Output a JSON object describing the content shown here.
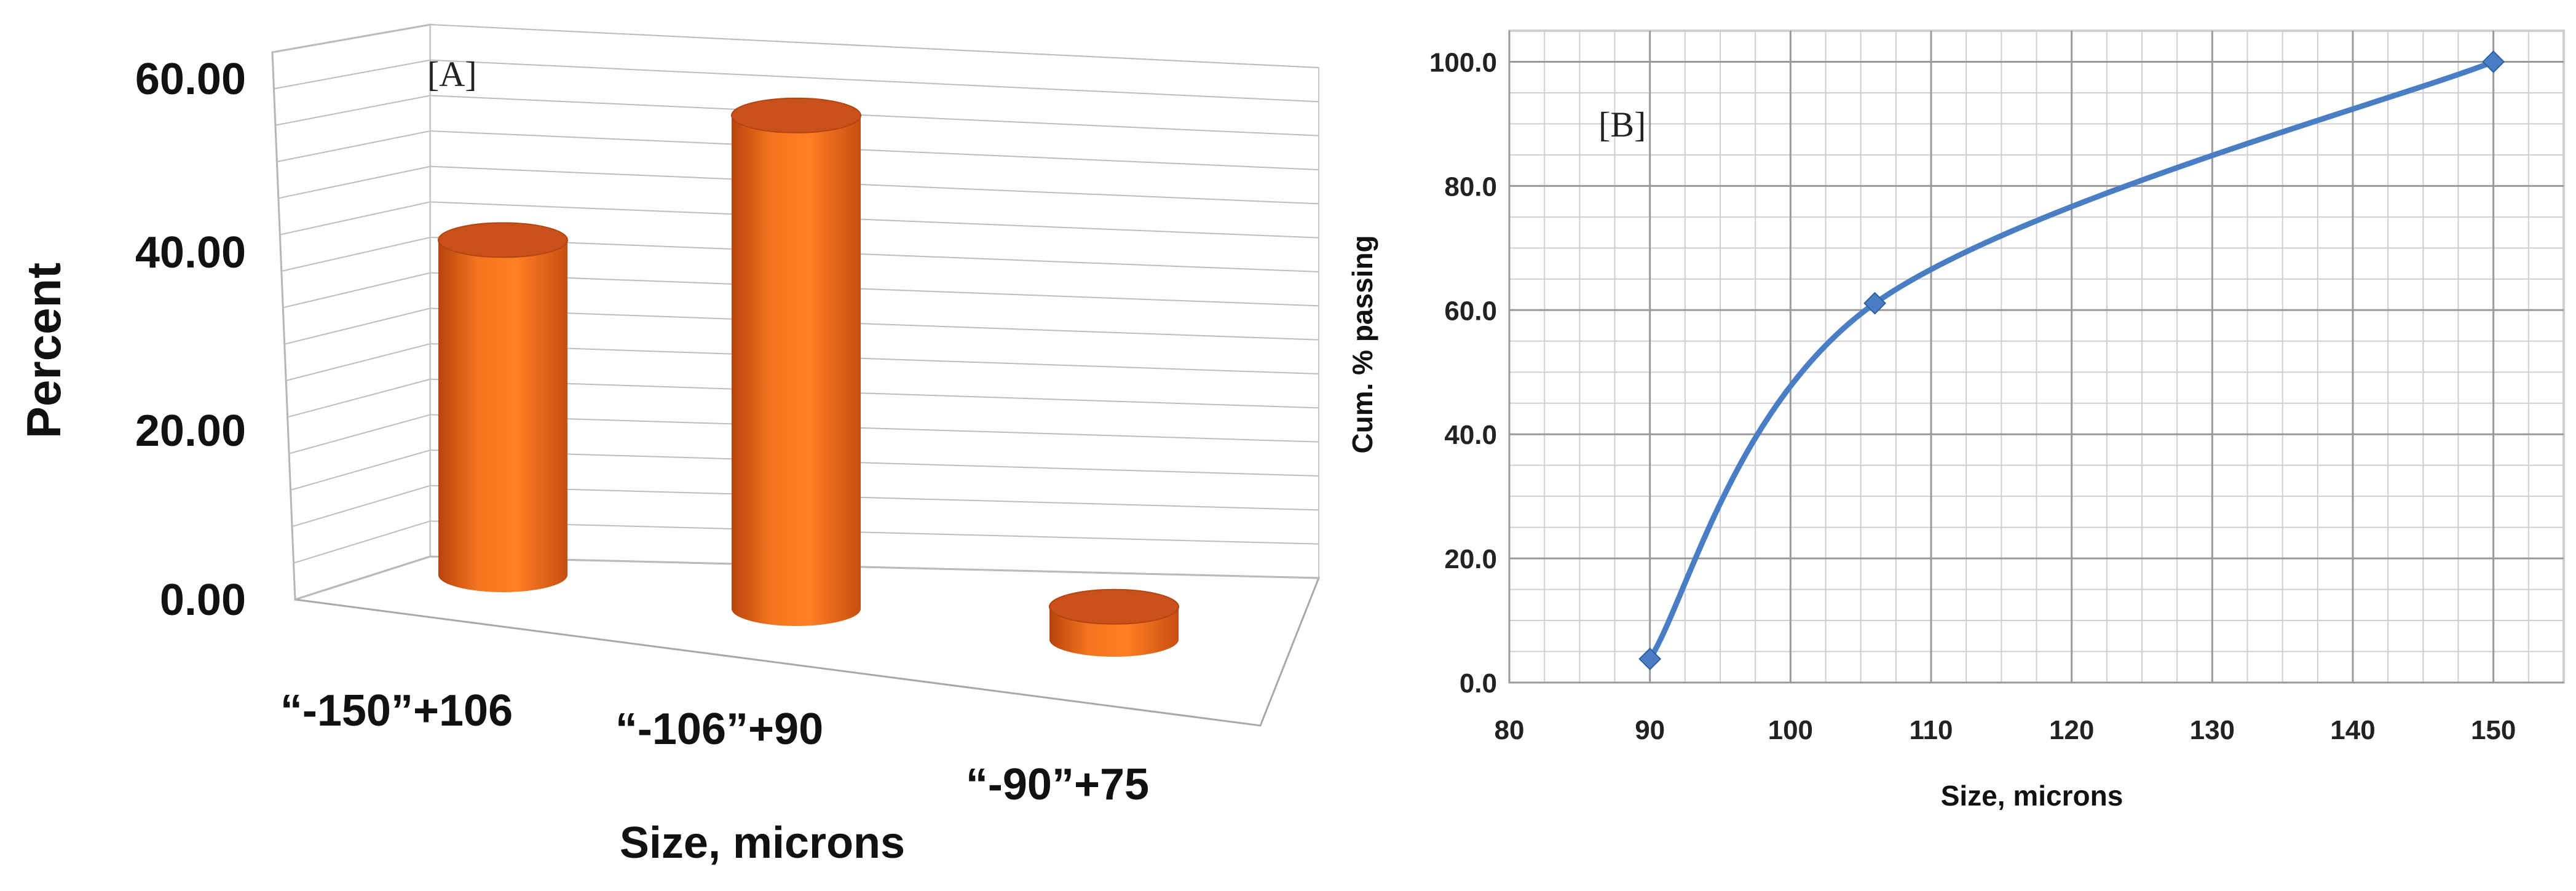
{
  "chart_data": [
    {
      "type": "bar",
      "style": "3d-cylinder",
      "panel_label": "[A]",
      "categories": [
        "“-150”+106",
        "“-106”+90",
        "“-90”+75"
      ],
      "values": [
        38.9,
        57.3,
        3.8
      ],
      "xlabel": "Size, microns",
      "ylabel": "Percent",
      "ylim": [
        0,
        60
      ],
      "yticks": [
        "0.00",
        "20.00",
        "40.00",
        "60.00"
      ],
      "grid": true,
      "color": "#F26A1B"
    },
    {
      "type": "line",
      "panel_label": "[B]",
      "x": [
        90,
        106,
        150
      ],
      "y": [
        3.8,
        61.1,
        100.0
      ],
      "xlabel": "Size, microns",
      "ylabel": "Cum. % passing",
      "xlim": [
        80,
        155
      ],
      "ylim": [
        0,
        105
      ],
      "xticks": [
        "80",
        "90",
        "100",
        "110",
        "120",
        "130",
        "140",
        "150"
      ],
      "yticks": [
        "0.0",
        "20.0",
        "40.0",
        "60.0",
        "80.0",
        "100.0"
      ],
      "grid": true,
      "smooth": true,
      "color": "#4A7EC4"
    }
  ]
}
